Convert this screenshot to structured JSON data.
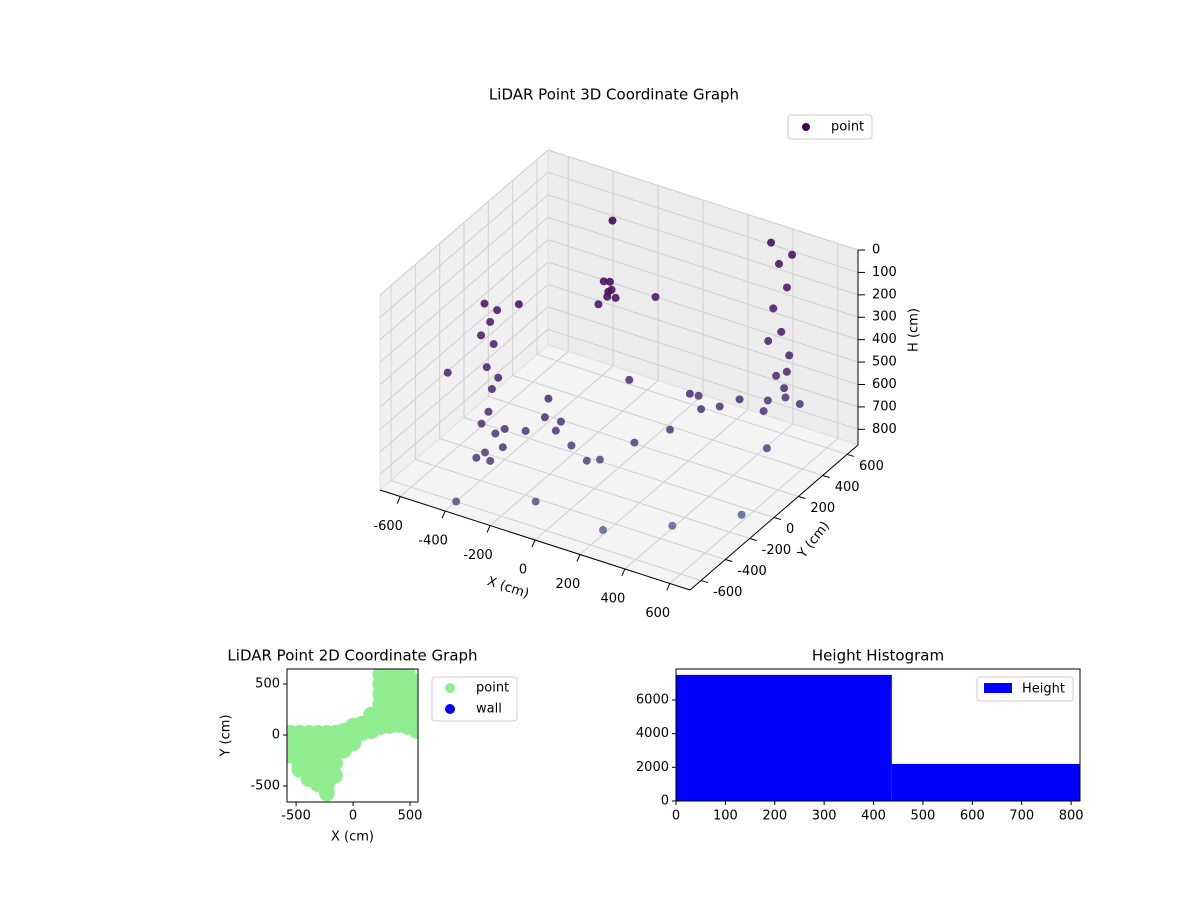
{
  "chart_data": [
    {
      "type": "scatter3d",
      "title": "LiDAR Point 3D Coordinate Graph",
      "x_label": "X (cm)",
      "y_label": "Y (cm)",
      "z_label": "H (cm)",
      "xlim": [
        -690,
        690
      ],
      "ylim": [
        -690,
        690
      ],
      "zlim": [
        870,
        0
      ],
      "xticks": [
        -600,
        -400,
        -200,
        0,
        200,
        400,
        600
      ],
      "yticks": [
        -600,
        -400,
        -200,
        0,
        200,
        400,
        600
      ],
      "zticks": [
        0,
        100,
        200,
        300,
        400,
        500,
        600,
        700,
        800
      ],
      "grid": true,
      "series": [
        {
          "name": "point",
          "color": "#440154",
          "x": [
            -420,
            -400,
            -390,
            -410,
            -395,
            -405,
            -385,
            -415,
            -380,
            -430,
            -375,
            -425,
            -400,
            -440,
            -360,
            330,
            360,
            390,
            340,
            370,
            400,
            350,
            380,
            410,
            320,
            395,
            -420,
            -400,
            -380,
            -410,
            -390,
            -370,
            -330,
            -280,
            -235,
            -200,
            -150,
            -60,
            30,
            94,
            150,
            200,
            257,
            257,
            320,
            400,
            470,
            516,
            -260,
            180,
            -600,
            -500,
            -200,
            0,
            100,
            300,
            500,
            -100,
            200,
            400,
            -400,
            600,
            550,
            -300
          ],
          "y": [
            -330,
            -320,
            -310,
            -330,
            -315,
            -325,
            -305,
            -335,
            -300,
            -340,
            -300,
            -345,
            -320,
            -360,
            -290,
            640,
            650,
            660,
            640,
            650,
            660,
            645,
            655,
            665,
            635,
            650,
            650,
            650,
            640,
            660,
            645,
            655,
            -330,
            -250,
            -175,
            -150,
            -200,
            -280,
            -320,
            -330,
            -150,
            50,
            200,
            353,
            400,
            450,
            500,
            533,
            -100,
            250,
            -300,
            100,
            200,
            300,
            -100,
            100,
            300,
            -500,
            -500,
            -300,
            -600,
            -100,
            200,
            500
          ],
          "z": [
            120,
            200,
            300,
            400,
            500,
            600,
            700,
            780,
            150,
            260,
            450,
            650,
            820,
            800,
            760,
            60,
            150,
            250,
            350,
            450,
            550,
            650,
            700,
            100,
            500,
            620,
            480,
            520,
            500,
            550,
            470,
            540,
            650,
            680,
            640,
            700,
            620,
            660,
            680,
            650,
            640,
            660,
            620,
            680,
            650,
            700,
            640,
            670,
            600,
            600,
            500,
            350,
            300,
            250,
            400,
            500,
            550,
            820,
            850,
            860,
            870,
            840,
            700,
            100
          ]
        }
      ]
    },
    {
      "type": "scatter",
      "title": "LiDAR Point 2D Coordinate Graph",
      "x_label": "X (cm)",
      "y_label": "Y (cm)",
      "xlim": [
        -580,
        570
      ],
      "ylim": [
        -657,
        647
      ],
      "xticks": [
        -500,
        0,
        500
      ],
      "yticks": [
        -500,
        0,
        500
      ],
      "series": [
        {
          "name": "point",
          "color": "#90ee90",
          "x": [
            -550,
            -550,
            -550,
            -550,
            -470,
            -470,
            -470,
            -470,
            -470,
            -390,
            -390,
            -390,
            -390,
            -390,
            -390,
            -310,
            -310,
            -310,
            -310,
            -310,
            -310,
            -230,
            -230,
            -230,
            -230,
            -230,
            -230,
            -230,
            -160,
            -160,
            -160,
            -160,
            -160,
            -80,
            -80,
            -80,
            0,
            0,
            0,
            80,
            80,
            160,
            160,
            160,
            240,
            240,
            240,
            240,
            240,
            240,
            320,
            320,
            320,
            320,
            320,
            320,
            400,
            400,
            400,
            400,
            400,
            400,
            480,
            480,
            480,
            480,
            480,
            480,
            560,
            560,
            560,
            560,
            560
          ],
          "y": [
            20,
            -60,
            -140,
            -200,
            20,
            -80,
            -180,
            -280,
            -340,
            20,
            -80,
            -180,
            -280,
            -380,
            -430,
            20,
            -80,
            -180,
            -280,
            -380,
            -480,
            20,
            -80,
            -180,
            -280,
            -380,
            -480,
            -570,
            20,
            -80,
            -180,
            -280,
            -400,
            40,
            -50,
            -150,
            90,
            0,
            -80,
            110,
            20,
            200,
            100,
            40,
            600,
            500,
            400,
            300,
            200,
            80,
            620,
            520,
            420,
            320,
            200,
            90,
            620,
            520,
            420,
            320,
            200,
            100,
            600,
            500,
            400,
            300,
            180,
            80,
            520,
            420,
            300,
            160,
            40
          ]
        },
        {
          "name": "wall",
          "color": "#0000ff",
          "x": [],
          "y": []
        }
      ]
    },
    {
      "type": "histogram",
      "title": "Height Histogram",
      "name": "Height",
      "color": "#0000ff",
      "bins": [
        0,
        437,
        818
      ],
      "counts": [
        7490,
        2200
      ],
      "xlim": [
        0,
        818
      ],
      "ylim": [
        0,
        7840
      ],
      "xticks": [
        0,
        100,
        200,
        300,
        400,
        500,
        600,
        700,
        800
      ],
      "yticks": [
        0,
        2000,
        4000,
        6000
      ]
    }
  ]
}
